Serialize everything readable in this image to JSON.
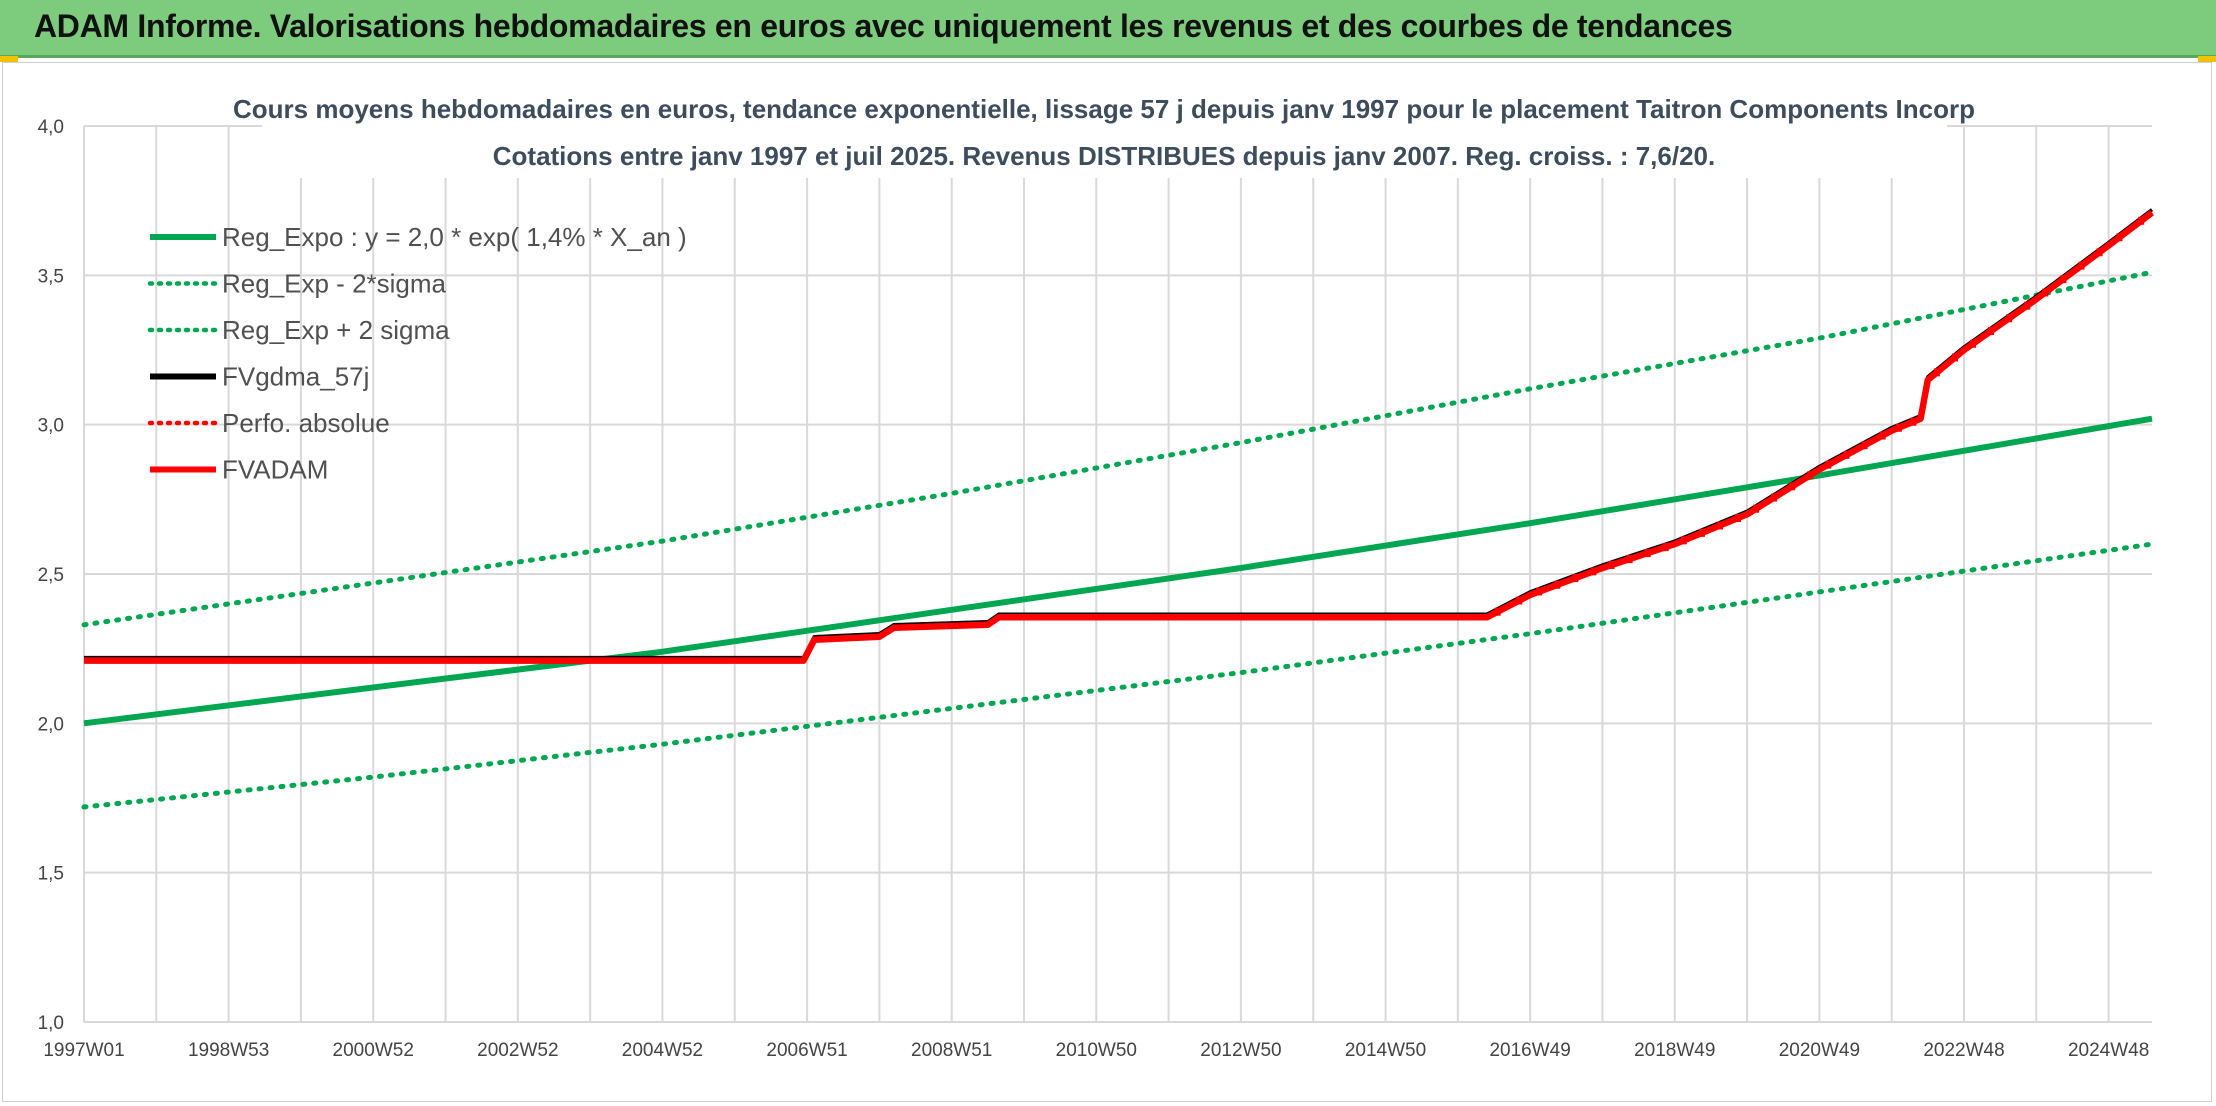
{
  "header": {
    "title": "ADAM Informe. Valorisations hebdomadaires en euros avec uniquement les revenus et des courbes de tendances"
  },
  "colors": {
    "banner": "#7dcb7d",
    "green": "#00a651",
    "black": "#000000",
    "red": "#ff0000",
    "accent": "#f2c100"
  },
  "chart_data": {
    "type": "line",
    "title": "Cours moyens hebdomadaires en euros, tendance exponentielle, lissage 57 j depuis janv 1997 pour le placement Taitron Components Incorp",
    "subtitle": "Cotations entre janv 1997 et juil 2025. Revenus DISTRIBUES depuis janv 2007. Reg. croiss. : 7,6/20.",
    "xlim": [
      1997.0,
      2025.6
    ],
    "ylim": [
      1.0,
      4.0
    ],
    "y_ticks": [
      "1,0",
      "1,5",
      "2,0",
      "2,5",
      "3,0",
      "3,5",
      "4,0"
    ],
    "x_ticks": [
      {
        "label": "1997W01",
        "x": 1997.0
      },
      {
        "label": "1998W53",
        "x": 1999.0
      },
      {
        "label": "2000W52",
        "x": 2001.0
      },
      {
        "label": "2002W52",
        "x": 2003.0
      },
      {
        "label": "2004W52",
        "x": 2005.0
      },
      {
        "label": "2006W51",
        "x": 2007.0
      },
      {
        "label": "2008W51",
        "x": 2009.0
      },
      {
        "label": "2010W50",
        "x": 2011.0
      },
      {
        "label": "2012W50",
        "x": 2013.0
      },
      {
        "label": "2014W50",
        "x": 2015.0
      },
      {
        "label": "2016W49",
        "x": 2017.0
      },
      {
        "label": "2018W49",
        "x": 2019.0
      },
      {
        "label": "2020W49",
        "x": 2021.0
      },
      {
        "label": "2022W48",
        "x": 2023.0
      },
      {
        "label": "2024W48",
        "x": 2025.0
      }
    ],
    "grid": true,
    "legend_position": "top-left",
    "series": [
      {
        "name": "Reg_Expo : y = 2,0 * exp( 1,4% *  X_an )",
        "color": "#00a651",
        "style": "solid",
        "x": [
          1997.0,
          2001.0,
          2005.0,
          2009.0,
          2013.0,
          2017.0,
          2021.0,
          2025.6
        ],
        "values": [
          2.0,
          2.12,
          2.24,
          2.38,
          2.52,
          2.67,
          2.83,
          3.02
        ]
      },
      {
        "name": "Reg_Exp - 2*sigma",
        "color": "#00a651",
        "style": "dotted",
        "x": [
          1997.0,
          2001.0,
          2005.0,
          2009.0,
          2013.0,
          2017.0,
          2021.0,
          2025.6
        ],
        "values": [
          1.72,
          1.82,
          1.93,
          2.05,
          2.17,
          2.3,
          2.44,
          2.6
        ]
      },
      {
        "name": "Reg_Exp + 2 sigma",
        "color": "#00a651",
        "style": "dotted",
        "x": [
          1997.0,
          2001.0,
          2005.0,
          2009.0,
          2013.0,
          2017.0,
          2021.0,
          2025.6
        ],
        "values": [
          2.33,
          2.47,
          2.61,
          2.77,
          2.94,
          3.12,
          3.29,
          3.51
        ]
      },
      {
        "name": "FVgdma_57j",
        "color": "#000000",
        "style": "solid",
        "x": [
          1997.0,
          2006.95,
          2007.1,
          2008.0,
          2008.2,
          2009.5,
          2009.65,
          2016.4,
          2017.0,
          2018.0,
          2019.0,
          2020.0,
          2021.0,
          2022.0,
          2022.4,
          2022.5,
          2023.0,
          2024.0,
          2025.0,
          2025.6
        ],
        "values": [
          2.21,
          2.21,
          2.28,
          2.29,
          2.32,
          2.33,
          2.355,
          2.355,
          2.43,
          2.52,
          2.6,
          2.7,
          2.85,
          2.98,
          3.02,
          3.15,
          3.25,
          3.42,
          3.6,
          3.71
        ]
      },
      {
        "name": "Perfo. absolue",
        "color": "#ff0000",
        "style": "dotted",
        "x": [],
        "values": []
      },
      {
        "name": "FVADAM",
        "color": "#ff0000",
        "style": "solid",
        "x": [
          1997.0,
          2006.95,
          2007.1,
          2008.0,
          2008.2,
          2009.5,
          2009.65,
          2016.4,
          2017.0,
          2018.0,
          2019.0,
          2020.0,
          2021.0,
          2022.0,
          2022.4,
          2022.5,
          2023.0,
          2024.0,
          2025.0,
          2025.6
        ],
        "values": [
          2.21,
          2.21,
          2.28,
          2.29,
          2.32,
          2.33,
          2.355,
          2.355,
          2.43,
          2.52,
          2.6,
          2.7,
          2.85,
          2.98,
          3.02,
          3.15,
          3.25,
          3.42,
          3.6,
          3.71
        ]
      }
    ]
  }
}
